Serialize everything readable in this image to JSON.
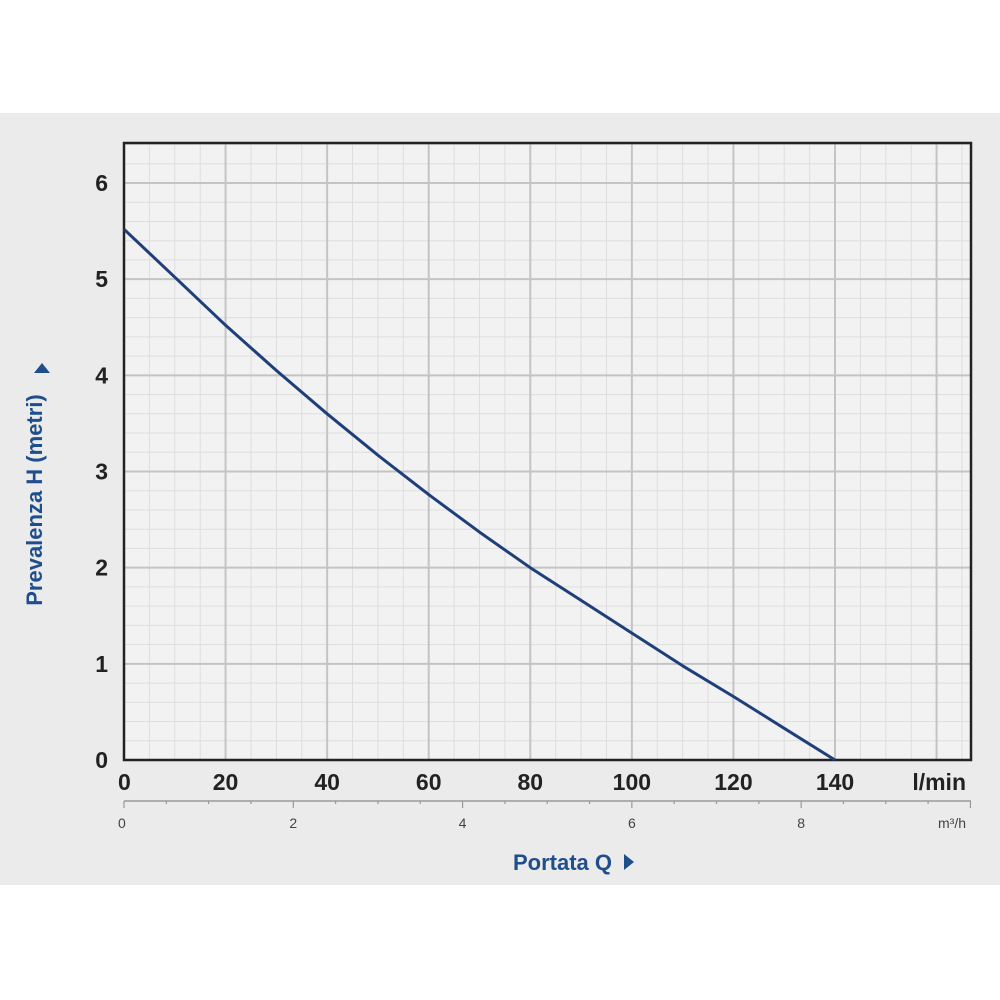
{
  "chart_data": {
    "type": "line",
    "xlabel": "Portata Q",
    "ylabel": "Prevalenza H (metri)",
    "x_unit": "l/min",
    "secondary_x_unit": "m³/h",
    "xlim": [
      0,
      140
    ],
    "ylim": [
      0,
      6
    ],
    "xticks": [
      "0",
      "20",
      "40",
      "60",
      "80",
      "100",
      "120",
      "140"
    ],
    "yticks": [
      "0",
      "1",
      "2",
      "3",
      "4",
      "5",
      "6"
    ],
    "secondary_xticks": [
      "0",
      "2",
      "4",
      "6",
      "8"
    ],
    "secondary_xlim": [
      0,
      8.4
    ],
    "grid": true,
    "series": [
      {
        "color": "#1f3f7a",
        "x": [
          0,
          10,
          20,
          30,
          40,
          50,
          60,
          70,
          80,
          90,
          100,
          110,
          120,
          130,
          140
        ],
        "y": [
          5.52,
          5.02,
          4.52,
          4.05,
          3.6,
          3.17,
          2.76,
          2.37,
          2.0,
          1.66,
          1.32,
          0.98,
          0.66,
          0.33,
          0.0
        ]
      }
    ]
  }
}
